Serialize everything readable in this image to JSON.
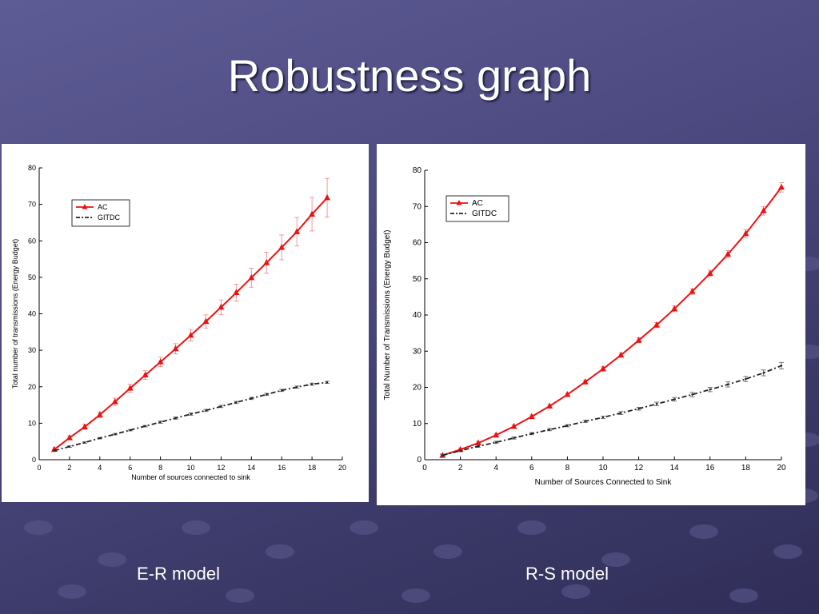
{
  "slide": {
    "title": "Robustness graph",
    "left_caption": "E-R model",
    "right_caption": "R-S model"
  },
  "colors": {
    "ac": "#ee1111",
    "gitdc": "#222222",
    "errorbar": "#f08080"
  },
  "chart_data": [
    {
      "type": "line",
      "title": "",
      "xlabel": "Number of sources connected to sink",
      "ylabel": "Total number of transmissions (Energy Budget)",
      "xlim": [
        0,
        20
      ],
      "ylim": [
        0,
        80
      ],
      "xticks": [
        0,
        2,
        4,
        6,
        8,
        10,
        12,
        14,
        16,
        18,
        20
      ],
      "yticks": [
        0,
        10,
        20,
        30,
        40,
        50,
        60,
        70,
        80
      ],
      "grid": false,
      "legend": "top-left",
      "x": [
        1,
        2,
        3,
        4,
        5,
        6,
        7,
        8,
        9,
        10,
        11,
        12,
        13,
        14,
        15,
        16,
        17,
        18,
        19
      ],
      "series": [
        {
          "name": "AC",
          "style": "solid-triangle",
          "values": [
            2.8,
            6.0,
            9.0,
            12.3,
            15.9,
            19.6,
            23.2,
            26.8,
            30.4,
            34.1,
            37.9,
            41.8,
            45.8,
            49.9,
            54.0,
            58.2,
            62.5,
            67.3,
            71.8
          ],
          "errors": [
            0.5,
            0.6,
            0.7,
            0.8,
            1.0,
            1.1,
            1.2,
            1.3,
            1.4,
            1.6,
            1.8,
            2.0,
            2.3,
            2.6,
            2.9,
            3.4,
            3.9,
            4.6,
            5.3
          ]
        },
        {
          "name": "GITDC",
          "style": "dashed-dot",
          "values": [
            2.5,
            3.6,
            4.7,
            5.9,
            7.0,
            8.1,
            9.2,
            10.3,
            11.4,
            12.5,
            13.5,
            14.6,
            15.7,
            16.8,
            17.9,
            19.0,
            19.9,
            20.7,
            21.2
          ],
          "errors": [
            0.2,
            0.2,
            0.2,
            0.2,
            0.2,
            0.2,
            0.2,
            0.3,
            0.3,
            0.3,
            0.3,
            0.3,
            0.3,
            0.3,
            0.3,
            0.3,
            0.3,
            0.3,
            0.3
          ]
        }
      ]
    },
    {
      "type": "line",
      "title": "",
      "xlabel": "Number of Sources Connected to Sink",
      "ylabel": "Total Number of Transmissions (Energy Budget)",
      "xlim": [
        0,
        20
      ],
      "ylim": [
        0,
        80
      ],
      "xticks": [
        0,
        2,
        4,
        6,
        8,
        10,
        12,
        14,
        16,
        18,
        20
      ],
      "yticks": [
        0,
        10,
        20,
        30,
        40,
        50,
        60,
        70,
        80
      ],
      "grid": false,
      "legend": "top-left",
      "x": [
        1,
        2,
        3,
        4,
        5,
        6,
        7,
        8,
        9,
        10,
        11,
        12,
        13,
        14,
        15,
        16,
        17,
        18,
        19,
        20
      ],
      "series": [
        {
          "name": "AC",
          "style": "solid-triangle",
          "values": [
            1.2,
            2.8,
            4.6,
            6.8,
            9.2,
            11.9,
            14.8,
            18.0,
            21.5,
            25.1,
            28.9,
            33.0,
            37.2,
            41.7,
            46.5,
            51.5,
            56.8,
            62.5,
            68.8,
            75.3
          ],
          "errors": [
            0.4,
            0.4,
            0.4,
            0.4,
            0.4,
            0.5,
            0.5,
            0.5,
            0.5,
            0.6,
            0.6,
            0.7,
            0.7,
            0.8,
            0.8,
            0.9,
            1.0,
            1.1,
            1.2,
            1.3
          ]
        },
        {
          "name": "GITDC",
          "style": "dashed-dot",
          "values": [
            1.2,
            2.5,
            3.7,
            4.8,
            6.0,
            7.2,
            8.3,
            9.4,
            10.6,
            11.7,
            12.9,
            14.1,
            15.4,
            16.7,
            18.0,
            19.4,
            20.8,
            22.3,
            24.0,
            26.0
          ],
          "errors": [
            0.3,
            0.3,
            0.3,
            0.3,
            0.3,
            0.3,
            0.3,
            0.3,
            0.3,
            0.3,
            0.4,
            0.4,
            0.5,
            0.5,
            0.6,
            0.6,
            0.7,
            0.7,
            0.8,
            0.9
          ]
        }
      ]
    }
  ]
}
